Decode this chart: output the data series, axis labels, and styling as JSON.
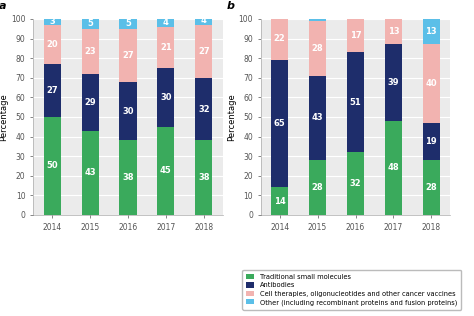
{
  "chart_a": {
    "years": [
      "2014",
      "2015",
      "2016",
      "2017",
      "2018"
    ],
    "traditional_small_molecules": [
      50,
      43,
      38,
      45,
      38
    ],
    "antibodies": [
      27,
      29,
      30,
      30,
      32
    ],
    "cell_therapies": [
      20,
      23,
      27,
      21,
      27
    ],
    "other": [
      3,
      5,
      5,
      4,
      4
    ]
  },
  "chart_b": {
    "years": [
      "2014",
      "2015",
      "2016",
      "2017",
      "2018"
    ],
    "traditional_small_molecules": [
      14,
      28,
      32,
      48,
      28
    ],
    "antibodies": [
      65,
      43,
      51,
      39,
      19
    ],
    "cell_therapies": [
      22,
      28,
      17,
      13,
      40
    ],
    "other": [
      0,
      1,
      0,
      0,
      13
    ]
  },
  "colors": {
    "traditional_small_molecules": "#3aaa5c",
    "antibodies": "#1e2d6b",
    "cell_therapies": "#f2b3b0",
    "other": "#5bbfe8"
  },
  "legend_labels": [
    "Traditional small molecules",
    "Antibodies",
    "Cell therapies, oligonucleotides and other cancer vaccines",
    "Other (including recombinant proteins and fusion proteins)"
  ],
  "ylabel": "Percentage",
  "background_color": "#ebebeb",
  "label_fontsize": 6.0,
  "tick_fontsize": 5.5,
  "bar_width": 0.45
}
